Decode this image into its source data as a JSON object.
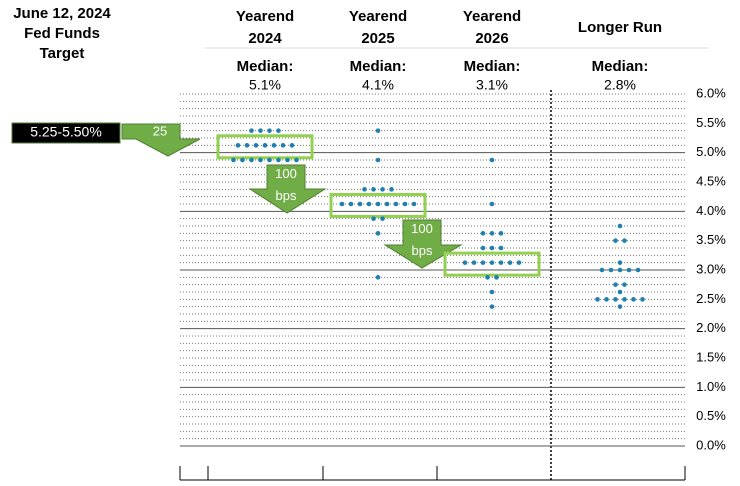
{
  "chart_data": {
    "type": "dot",
    "title": "June 12, 2024\nFed Funds\nTarget",
    "categories": [
      "Yearend\n2024",
      "Yearend\n2025",
      "Yearend\n2026",
      "Longer Run"
    ],
    "median_label": "Median:",
    "medians": [
      5.1,
      4.1,
      3.1,
      2.8
    ],
    "median_labels": [
      "5.1%",
      "4.1%",
      "3.1%",
      "2.8%"
    ],
    "highlight_median": [
      true,
      true,
      true,
      false
    ],
    "values": [
      [
        5.375,
        5.375,
        5.375,
        5.375,
        5.125,
        5.125,
        5.125,
        5.125,
        5.125,
        5.125,
        5.125,
        4.875,
        4.875,
        4.875,
        4.875,
        4.875,
        4.875,
        4.875,
        4.875
      ],
      [
        5.375,
        4.875,
        4.375,
        4.375,
        4.375,
        4.375,
        4.125,
        4.125,
        4.125,
        4.125,
        4.125,
        4.125,
        4.125,
        4.125,
        4.125,
        3.875,
        3.875,
        3.625,
        2.875
      ],
      [
        4.875,
        4.125,
        3.625,
        3.625,
        3.625,
        3.375,
        3.375,
        3.375,
        3.125,
        3.125,
        3.125,
        3.125,
        3.125,
        3.125,
        3.125,
        2.875,
        2.875,
        2.625,
        2.375
      ],
      [
        3.75,
        3.5,
        3.5,
        3.125,
        3.0,
        3.0,
        3.0,
        3.0,
        3.0,
        2.75,
        2.75,
        2.625,
        2.5,
        2.5,
        2.5,
        2.5,
        2.5,
        2.5,
        2.375
      ]
    ],
    "color": "#1f7fb0",
    "current_target": "5.25-5.50%",
    "moves": [
      "25",
      "100\nbps",
      "100\nbps"
    ],
    "ylim": [
      0,
      6
    ],
    "yticks": [
      {
        "value": 0,
        "label": "0.0%"
      },
      {
        "value": 0.5,
        "label": "0.5%"
      },
      {
        "value": 1,
        "label": "1.0%"
      },
      {
        "value": 1.5,
        "label": "1.5%"
      },
      {
        "value": 2,
        "label": "2.0%"
      },
      {
        "value": 2.5,
        "label": "2.5%"
      },
      {
        "value": 3,
        "label": "3.0%"
      },
      {
        "value": 3.5,
        "label": "3.5%"
      },
      {
        "value": 4,
        "label": "4.0%"
      },
      {
        "value": 4.5,
        "label": "4.5%"
      },
      {
        "value": 5,
        "label": "5.0%"
      },
      {
        "value": 5.5,
        "label": "5.5%"
      },
      {
        "value": 6,
        "label": "6.0%"
      }
    ],
    "grid": true
  }
}
